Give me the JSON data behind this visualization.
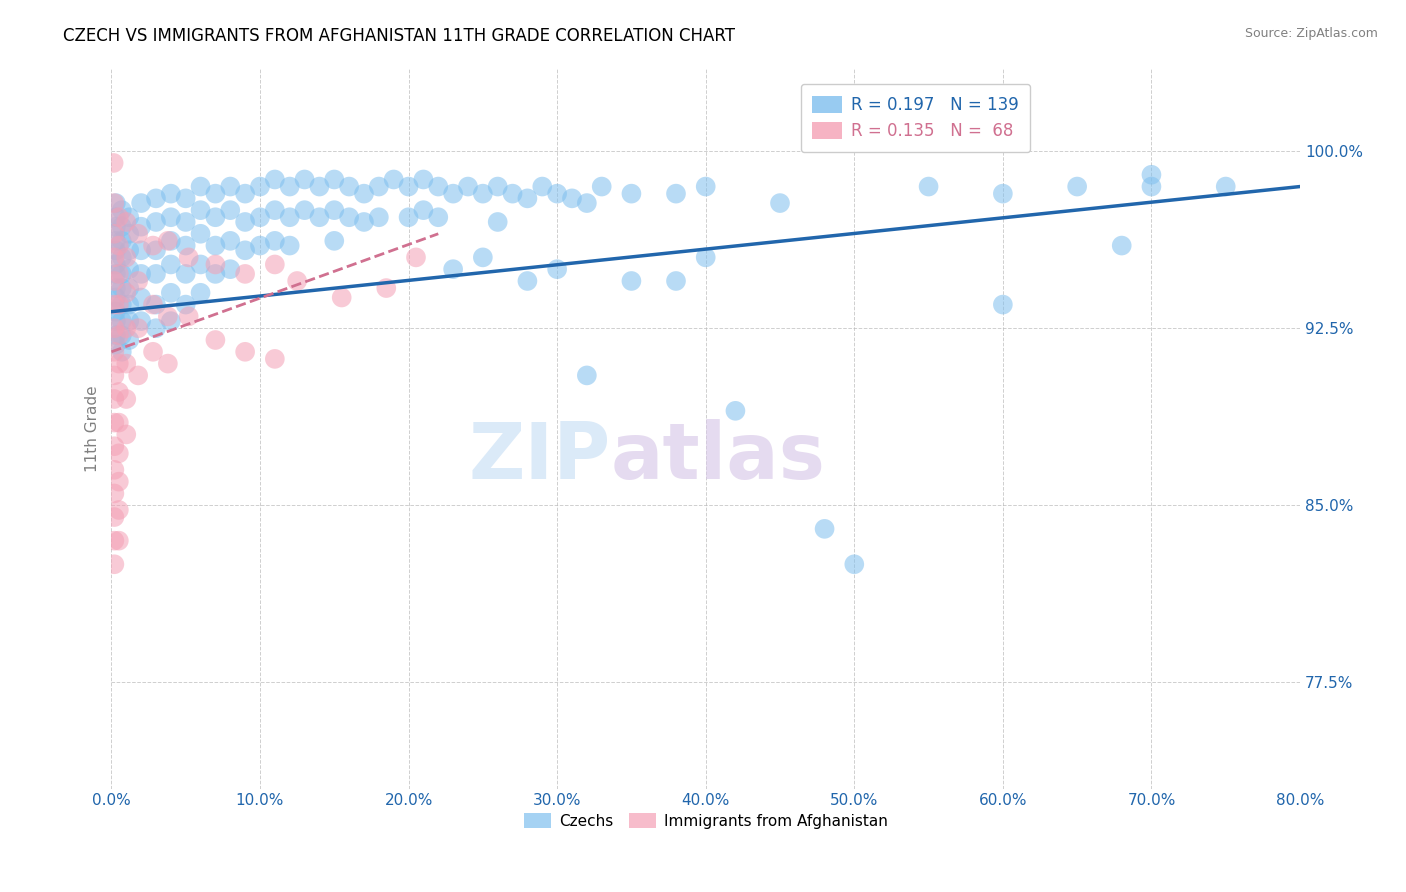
{
  "title": "CZECH VS IMMIGRANTS FROM AFGHANISTAN 11TH GRADE CORRELATION CHART",
  "source": "Source: ZipAtlas.com",
  "ylabel": "11th Grade",
  "x_tick_labels": [
    "0.0%",
    "10.0%",
    "20.0%",
    "30.0%",
    "40.0%",
    "50.0%",
    "60.0%",
    "70.0%",
    "80.0%"
  ],
  "y_tick_labels": [
    "77.5%",
    "85.0%",
    "92.5%",
    "100.0%"
  ],
  "xlim": [
    0.0,
    80.0
  ],
  "ylim": [
    73.0,
    103.5
  ],
  "y_ticks": [
    77.5,
    85.0,
    92.5,
    100.0
  ],
  "x_ticks": [
    0.0,
    10.0,
    20.0,
    30.0,
    40.0,
    50.0,
    60.0,
    70.0,
    80.0
  ],
  "legend_labels_bottom": [
    "Czechs",
    "Immigrants from Afghanistan"
  ],
  "blue_color": "#7fbfee",
  "pink_color": "#f4a0b5",
  "blue_line_color": "#2166ac",
  "pink_line_color": "#d07090",
  "watermark_zip": "ZIP",
  "watermark_atlas": "atlas",
  "title_fontsize": 12,
  "axis_label_fontsize": 11,
  "tick_fontsize": 11,
  "blue_r": "0.197",
  "blue_n": "139",
  "pink_r": "0.135",
  "pink_n": " 68",
  "blue_scatter": [
    [
      0.3,
      97.8
    ],
    [
      0.3,
      97.2
    ],
    [
      0.3,
      96.8
    ],
    [
      0.3,
      96.2
    ],
    [
      0.3,
      95.8
    ],
    [
      0.3,
      95.2
    ],
    [
      0.3,
      94.8
    ],
    [
      0.3,
      94.2
    ],
    [
      0.3,
      93.8
    ],
    [
      0.3,
      93.2
    ],
    [
      0.3,
      92.8
    ],
    [
      0.3,
      92.2
    ],
    [
      0.3,
      91.8
    ],
    [
      0.7,
      97.5
    ],
    [
      0.7,
      96.8
    ],
    [
      0.7,
      96.2
    ],
    [
      0.7,
      95.5
    ],
    [
      0.7,
      94.8
    ],
    [
      0.7,
      94.2
    ],
    [
      0.7,
      93.5
    ],
    [
      0.7,
      92.8
    ],
    [
      0.7,
      92.2
    ],
    [
      0.7,
      91.5
    ],
    [
      1.2,
      97.2
    ],
    [
      1.2,
      96.5
    ],
    [
      1.2,
      95.8
    ],
    [
      1.2,
      95.0
    ],
    [
      1.2,
      94.2
    ],
    [
      1.2,
      93.5
    ],
    [
      1.2,
      92.8
    ],
    [
      1.2,
      92.0
    ],
    [
      2.0,
      97.8
    ],
    [
      2.0,
      96.8
    ],
    [
      2.0,
      95.8
    ],
    [
      2.0,
      94.8
    ],
    [
      2.0,
      93.8
    ],
    [
      2.0,
      92.8
    ],
    [
      3.0,
      98.0
    ],
    [
      3.0,
      97.0
    ],
    [
      3.0,
      95.8
    ],
    [
      3.0,
      94.8
    ],
    [
      3.0,
      93.5
    ],
    [
      3.0,
      92.5
    ],
    [
      4.0,
      98.2
    ],
    [
      4.0,
      97.2
    ],
    [
      4.0,
      96.2
    ],
    [
      4.0,
      95.2
    ],
    [
      4.0,
      94.0
    ],
    [
      4.0,
      92.8
    ],
    [
      5.0,
      98.0
    ],
    [
      5.0,
      97.0
    ],
    [
      5.0,
      96.0
    ],
    [
      5.0,
      94.8
    ],
    [
      5.0,
      93.5
    ],
    [
      6.0,
      98.5
    ],
    [
      6.0,
      97.5
    ],
    [
      6.0,
      96.5
    ],
    [
      6.0,
      95.2
    ],
    [
      6.0,
      94.0
    ],
    [
      7.0,
      98.2
    ],
    [
      7.0,
      97.2
    ],
    [
      7.0,
      96.0
    ],
    [
      7.0,
      94.8
    ],
    [
      8.0,
      98.5
    ],
    [
      8.0,
      97.5
    ],
    [
      8.0,
      96.2
    ],
    [
      8.0,
      95.0
    ],
    [
      9.0,
      98.2
    ],
    [
      9.0,
      97.0
    ],
    [
      9.0,
      95.8
    ],
    [
      10.0,
      98.5
    ],
    [
      10.0,
      97.2
    ],
    [
      10.0,
      96.0
    ],
    [
      11.0,
      98.8
    ],
    [
      11.0,
      97.5
    ],
    [
      11.0,
      96.2
    ],
    [
      12.0,
      98.5
    ],
    [
      12.0,
      97.2
    ],
    [
      12.0,
      96.0
    ],
    [
      13.0,
      98.8
    ],
    [
      13.0,
      97.5
    ],
    [
      14.0,
      98.5
    ],
    [
      14.0,
      97.2
    ],
    [
      15.0,
      98.8
    ],
    [
      15.0,
      97.5
    ],
    [
      15.0,
      96.2
    ],
    [
      16.0,
      98.5
    ],
    [
      16.0,
      97.2
    ],
    [
      17.0,
      98.2
    ],
    [
      17.0,
      97.0
    ],
    [
      18.0,
      98.5
    ],
    [
      18.0,
      97.2
    ],
    [
      19.0,
      98.8
    ],
    [
      20.0,
      98.5
    ],
    [
      20.0,
      97.2
    ],
    [
      21.0,
      98.8
    ],
    [
      21.0,
      97.5
    ],
    [
      22.0,
      98.5
    ],
    [
      22.0,
      97.2
    ],
    [
      23.0,
      98.2
    ],
    [
      23.0,
      95.0
    ],
    [
      24.0,
      98.5
    ],
    [
      25.0,
      98.2
    ],
    [
      25.0,
      95.5
    ],
    [
      26.0,
      98.5
    ],
    [
      26.0,
      97.0
    ],
    [
      27.0,
      98.2
    ],
    [
      28.0,
      98.0
    ],
    [
      28.0,
      94.5
    ],
    [
      29.0,
      98.5
    ],
    [
      30.0,
      98.2
    ],
    [
      30.0,
      95.0
    ],
    [
      31.0,
      98.0
    ],
    [
      32.0,
      97.8
    ],
    [
      32.0,
      90.5
    ],
    [
      33.0,
      98.5
    ],
    [
      35.0,
      98.2
    ],
    [
      35.0,
      94.5
    ],
    [
      38.0,
      98.2
    ],
    [
      38.0,
      94.5
    ],
    [
      40.0,
      98.5
    ],
    [
      40.0,
      95.5
    ],
    [
      42.0,
      89.0
    ],
    [
      45.0,
      97.8
    ],
    [
      48.0,
      84.0
    ],
    [
      50.0,
      82.5
    ],
    [
      55.0,
      98.5
    ],
    [
      60.0,
      98.2
    ],
    [
      60.0,
      93.5
    ],
    [
      65.0,
      98.5
    ],
    [
      68.0,
      96.0
    ],
    [
      70.0,
      99.0
    ],
    [
      70.0,
      98.5
    ],
    [
      75.0,
      98.5
    ]
  ],
  "pink_scatter": [
    [
      0.15,
      99.5
    ],
    [
      0.2,
      97.8
    ],
    [
      0.2,
      96.5
    ],
    [
      0.2,
      95.5
    ],
    [
      0.2,
      94.5
    ],
    [
      0.2,
      93.5
    ],
    [
      0.2,
      92.5
    ],
    [
      0.2,
      91.5
    ],
    [
      0.2,
      90.5
    ],
    [
      0.2,
      89.5
    ],
    [
      0.2,
      88.5
    ],
    [
      0.2,
      87.5
    ],
    [
      0.2,
      86.5
    ],
    [
      0.2,
      85.5
    ],
    [
      0.2,
      84.5
    ],
    [
      0.2,
      83.5
    ],
    [
      0.2,
      82.5
    ],
    [
      0.5,
      97.2
    ],
    [
      0.5,
      96.0
    ],
    [
      0.5,
      94.8
    ],
    [
      0.5,
      93.5
    ],
    [
      0.5,
      92.2
    ],
    [
      0.5,
      91.0
    ],
    [
      0.5,
      89.8
    ],
    [
      0.5,
      88.5
    ],
    [
      0.5,
      87.2
    ],
    [
      0.5,
      86.0
    ],
    [
      0.5,
      84.8
    ],
    [
      0.5,
      83.5
    ],
    [
      1.0,
      97.0
    ],
    [
      1.0,
      95.5
    ],
    [
      1.0,
      94.0
    ],
    [
      1.0,
      92.5
    ],
    [
      1.0,
      91.0
    ],
    [
      1.0,
      89.5
    ],
    [
      1.0,
      88.0
    ],
    [
      1.8,
      96.5
    ],
    [
      1.8,
      94.5
    ],
    [
      1.8,
      92.5
    ],
    [
      1.8,
      90.5
    ],
    [
      2.8,
      96.0
    ],
    [
      2.8,
      93.5
    ],
    [
      2.8,
      91.5
    ],
    [
      3.8,
      96.2
    ],
    [
      3.8,
      93.0
    ],
    [
      3.8,
      91.0
    ],
    [
      5.2,
      95.5
    ],
    [
      5.2,
      93.0
    ],
    [
      7.0,
      95.2
    ],
    [
      7.0,
      92.0
    ],
    [
      9.0,
      94.8
    ],
    [
      9.0,
      91.5
    ],
    [
      11.0,
      95.2
    ],
    [
      11.0,
      91.2
    ],
    [
      12.5,
      94.5
    ],
    [
      15.5,
      93.8
    ],
    [
      18.5,
      94.2
    ],
    [
      20.5,
      95.5
    ]
  ]
}
